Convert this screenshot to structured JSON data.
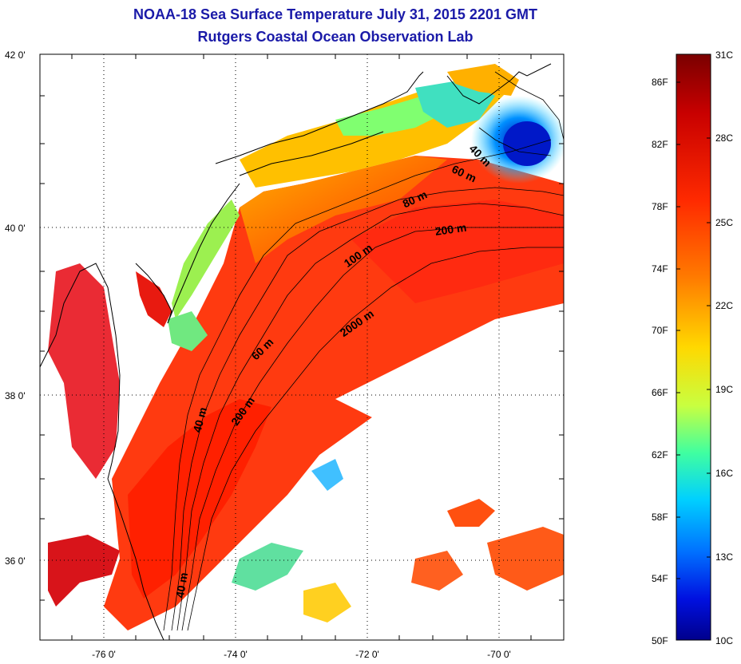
{
  "title": {
    "line1": "NOAA-18 Sea Surface Temperature July 31, 2015 2201 GMT",
    "line2": "Rutgers Coastal Ocean Observation Lab"
  },
  "map": {
    "lat_ticks": [
      "42 0'",
      "40 0'",
      "38 0'",
      "36 0'"
    ],
    "lon_ticks": [
      "-76 0'",
      "-74 0'",
      "-72 0'",
      "-70 0'"
    ],
    "contour_labels": [
      "40 m",
      "60 m",
      "80 m",
      "200 m",
      "100 m",
      "2000 m",
      "60 m",
      "200 m",
      "40 m",
      "40 m"
    ]
  },
  "colorbar": {
    "fahrenheit": [
      "86F",
      "82F",
      "78F",
      "74F",
      "70F",
      "66F",
      "62F",
      "58F",
      "54F",
      "50F"
    ],
    "celsius": [
      "31C",
      "28C",
      "25C",
      "22C",
      "19C",
      "16C",
      "13C",
      "10C"
    ],
    "colors": [
      "#7a0000",
      "#c80000",
      "#ff2a00",
      "#ff7a00",
      "#ffd800",
      "#c8ff40",
      "#40ffa0",
      "#00d0ff",
      "#0070ff",
      "#0010e0",
      "#00008c"
    ]
  }
}
